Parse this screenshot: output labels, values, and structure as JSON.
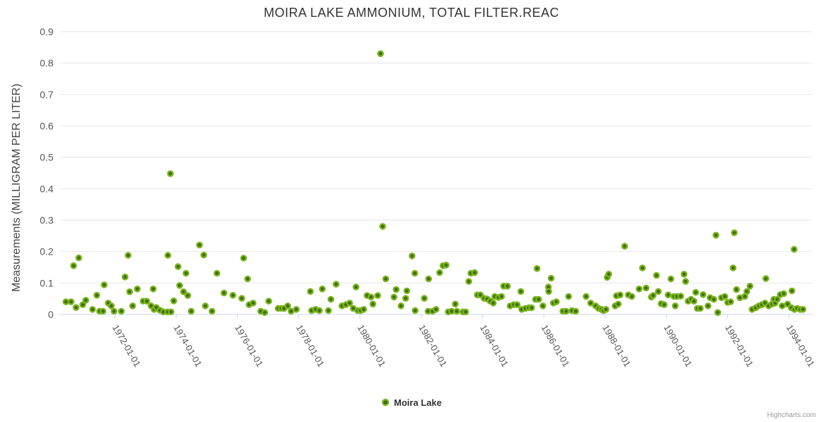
{
  "title": "MOIRA LAKE AMMONIUM, TOTAL FILTER.REAC",
  "legend": {
    "label": "Moira Lake"
  },
  "credits": "Highcharts.com",
  "colors": {
    "title": "#333333",
    "tick_label": "#555555",
    "grid": "#e6e6e6",
    "axis_line": "#ccd6eb",
    "marker_ring": "#7ab51f",
    "marker_core": "#3f6e0c",
    "credits": "#999999"
  },
  "chart_data": {
    "type": "scatter",
    "title": "MOIRA LAKE AMMONIUM, TOTAL FILTER.REAC",
    "xlabel": "",
    "ylabel": "Measurements (MILLIGRAM PER LITER)",
    "legend_position": "bottom-center",
    "grid": "horizontal",
    "xlim": [
      1970.2,
      1994.77
    ],
    "ylim": [
      0,
      0.9
    ],
    "xticks": [
      {
        "v": 1972,
        "label": "1972-01-01"
      },
      {
        "v": 1974,
        "label": "1974-01-01"
      },
      {
        "v": 1976,
        "label": "1976-01-01"
      },
      {
        "v": 1978,
        "label": "1978-01-01"
      },
      {
        "v": 1980,
        "label": "1980-01-01"
      },
      {
        "v": 1982,
        "label": "1982-01-01"
      },
      {
        "v": 1984,
        "label": "1984-01-01"
      },
      {
        "v": 1986,
        "label": "1986-01-01"
      },
      {
        "v": 1988,
        "label": "1988-01-01"
      },
      {
        "v": 1990,
        "label": "1990-01-01"
      },
      {
        "v": 1992,
        "label": "1992-01-01"
      },
      {
        "v": 1994,
        "label": "1994-01-01"
      }
    ],
    "yticks": [
      {
        "v": 0,
        "label": "0"
      },
      {
        "v": 0.1,
        "label": "0.1"
      },
      {
        "v": 0.2,
        "label": "0.2"
      },
      {
        "v": 0.3,
        "label": "0.3"
      },
      {
        "v": 0.4,
        "label": "0.4"
      },
      {
        "v": 0.5,
        "label": "0.5"
      },
      {
        "v": 0.6,
        "label": "0.6"
      },
      {
        "v": 0.7,
        "label": "0.7"
      },
      {
        "v": 0.8,
        "label": "0.8"
      },
      {
        "v": 0.9,
        "label": "0.9"
      }
    ],
    "series": [
      {
        "name": "Moira Lake",
        "color": "#7ab51f",
        "points": [
          [
            1970.4,
            0.04
          ],
          [
            1970.57,
            0.04
          ],
          [
            1970.65,
            0.155
          ],
          [
            1970.73,
            0.022
          ],
          [
            1970.82,
            0.18
          ],
          [
            1970.95,
            0.031
          ],
          [
            1971.05,
            0.045
          ],
          [
            1971.27,
            0.016
          ],
          [
            1971.41,
            0.061
          ],
          [
            1971.5,
            0.01
          ],
          [
            1971.61,
            0.01
          ],
          [
            1971.65,
            0.094
          ],
          [
            1971.78,
            0.036
          ],
          [
            1971.88,
            0.027
          ],
          [
            1971.97,
            0.01
          ],
          [
            1972.21,
            0.01
          ],
          [
            1972.33,
            0.119
          ],
          [
            1972.43,
            0.188
          ],
          [
            1972.48,
            0.072
          ],
          [
            1972.58,
            0.027
          ],
          [
            1972.73,
            0.081
          ],
          [
            1972.92,
            0.042
          ],
          [
            1973.04,
            0.042
          ],
          [
            1973.18,
            0.027
          ],
          [
            1973.25,
            0.081
          ],
          [
            1973.28,
            0.016
          ],
          [
            1973.35,
            0.022
          ],
          [
            1973.47,
            0.013
          ],
          [
            1973.58,
            0.008
          ],
          [
            1973.72,
            0.008
          ],
          [
            1973.73,
            0.188
          ],
          [
            1973.81,
            0.448
          ],
          [
            1973.83,
            0.008
          ],
          [
            1973.92,
            0.043
          ],
          [
            1974.06,
            0.152
          ],
          [
            1974.11,
            0.092
          ],
          [
            1974.24,
            0.072
          ],
          [
            1974.32,
            0.131
          ],
          [
            1974.38,
            0.06
          ],
          [
            1974.49,
            0.01
          ],
          [
            1974.76,
            0.221
          ],
          [
            1974.9,
            0.189
          ],
          [
            1974.95,
            0.027
          ],
          [
            1975.17,
            0.01
          ],
          [
            1975.33,
            0.131
          ],
          [
            1975.56,
            0.068
          ],
          [
            1975.85,
            0.061
          ],
          [
            1976.14,
            0.051
          ],
          [
            1976.2,
            0.179
          ],
          [
            1976.33,
            0.113
          ],
          [
            1976.38,
            0.031
          ],
          [
            1976.51,
            0.036
          ],
          [
            1976.76,
            0.01
          ],
          [
            1976.89,
            0.006
          ],
          [
            1977.02,
            0.042
          ],
          [
            1977.33,
            0.019
          ],
          [
            1977.43,
            0.019
          ],
          [
            1977.52,
            0.019
          ],
          [
            1977.64,
            0.027
          ],
          [
            1977.75,
            0.01
          ],
          [
            1977.92,
            0.016
          ],
          [
            1978.38,
            0.073
          ],
          [
            1978.42,
            0.012
          ],
          [
            1978.55,
            0.016
          ],
          [
            1978.67,
            0.012
          ],
          [
            1978.77,
            0.081
          ],
          [
            1978.97,
            0.012
          ],
          [
            1979.05,
            0.048
          ],
          [
            1979.22,
            0.096
          ],
          [
            1979.41,
            0.027
          ],
          [
            1979.54,
            0.031
          ],
          [
            1979.66,
            0.036
          ],
          [
            1979.78,
            0.019
          ],
          [
            1979.87,
            0.087
          ],
          [
            1979.93,
            0.012
          ],
          [
            1980.02,
            0.012
          ],
          [
            1980.12,
            0.016
          ],
          [
            1980.23,
            0.06
          ],
          [
            1980.36,
            0.055
          ],
          [
            1980.42,
            0.033
          ],
          [
            1980.58,
            0.06
          ],
          [
            1980.67,
            0.83
          ],
          [
            1980.74,
            0.28
          ],
          [
            1980.84,
            0.113
          ],
          [
            1981.11,
            0.055
          ],
          [
            1981.18,
            0.079
          ],
          [
            1981.34,
            0.027
          ],
          [
            1981.49,
            0.051
          ],
          [
            1981.53,
            0.075
          ],
          [
            1981.7,
            0.186
          ],
          [
            1981.79,
            0.131
          ],
          [
            1981.8,
            0.012
          ],
          [
            1982.1,
            0.051
          ],
          [
            1982.22,
            0.01
          ],
          [
            1982.24,
            0.113
          ],
          [
            1982.37,
            0.01
          ],
          [
            1982.48,
            0.016
          ],
          [
            1982.6,
            0.133
          ],
          [
            1982.71,
            0.155
          ],
          [
            1982.81,
            0.157
          ],
          [
            1982.88,
            0.008
          ],
          [
            1982.99,
            0.01
          ],
          [
            1983.11,
            0.033
          ],
          [
            1983.16,
            0.01
          ],
          [
            1983.36,
            0.008
          ],
          [
            1983.45,
            0.008
          ],
          [
            1983.55,
            0.105
          ],
          [
            1983.62,
            0.131
          ],
          [
            1983.74,
            0.133
          ],
          [
            1983.83,
            0.062
          ],
          [
            1983.93,
            0.062
          ],
          [
            1984.05,
            0.051
          ],
          [
            1984.15,
            0.049
          ],
          [
            1984.25,
            0.042
          ],
          [
            1984.35,
            0.036
          ],
          [
            1984.4,
            0.057
          ],
          [
            1984.52,
            0.054
          ],
          [
            1984.62,
            0.057
          ],
          [
            1984.69,
            0.09
          ],
          [
            1984.81,
            0.09
          ],
          [
            1984.9,
            0.027
          ],
          [
            1985.02,
            0.031
          ],
          [
            1985.13,
            0.031
          ],
          [
            1985.25,
            0.073
          ],
          [
            1985.28,
            0.016
          ],
          [
            1985.4,
            0.019
          ],
          [
            1985.51,
            0.021
          ],
          [
            1985.6,
            0.021
          ],
          [
            1985.73,
            0.048
          ],
          [
            1985.78,
            0.146
          ],
          [
            1985.83,
            0.048
          ],
          [
            1985.97,
            0.027
          ],
          [
            1986.15,
            0.087
          ],
          [
            1986.16,
            0.073
          ],
          [
            1986.24,
            0.115
          ],
          [
            1986.31,
            0.036
          ],
          [
            1986.41,
            0.04
          ],
          [
            1986.62,
            0.01
          ],
          [
            1986.73,
            0.01
          ],
          [
            1986.81,
            0.057
          ],
          [
            1986.92,
            0.012
          ],
          [
            1987.04,
            0.01
          ],
          [
            1987.38,
            0.057
          ],
          [
            1987.53,
            0.036
          ],
          [
            1987.69,
            0.027
          ],
          [
            1987.79,
            0.019
          ],
          [
            1987.88,
            0.016
          ],
          [
            1987.95,
            0.012
          ],
          [
            1988.03,
            0.016
          ],
          [
            1988.07,
            0.118
          ],
          [
            1988.12,
            0.128
          ],
          [
            1988.33,
            0.027
          ],
          [
            1988.37,
            0.059
          ],
          [
            1988.43,
            0.033
          ],
          [
            1988.49,
            0.062
          ],
          [
            1988.64,
            0.217
          ],
          [
            1988.76,
            0.062
          ],
          [
            1988.87,
            0.057
          ],
          [
            1989.11,
            0.081
          ],
          [
            1989.22,
            0.148
          ],
          [
            1989.34,
            0.084
          ],
          [
            1989.51,
            0.055
          ],
          [
            1989.57,
            0.06
          ],
          [
            1989.68,
            0.124
          ],
          [
            1989.74,
            0.073
          ],
          [
            1989.83,
            0.034
          ],
          [
            1989.93,
            0.031
          ],
          [
            1990.06,
            0.062
          ],
          [
            1990.15,
            0.113
          ],
          [
            1990.25,
            0.057
          ],
          [
            1990.29,
            0.027
          ],
          [
            1990.35,
            0.057
          ],
          [
            1990.47,
            0.058
          ],
          [
            1990.58,
            0.128
          ],
          [
            1990.63,
            0.105
          ],
          [
            1990.71,
            0.042
          ],
          [
            1990.81,
            0.048
          ],
          [
            1990.9,
            0.042
          ],
          [
            1990.96,
            0.07
          ],
          [
            1991.01,
            0.019
          ],
          [
            1991.11,
            0.019
          ],
          [
            1991.2,
            0.063
          ],
          [
            1991.36,
            0.027
          ],
          [
            1991.43,
            0.053
          ],
          [
            1991.55,
            0.048
          ],
          [
            1991.62,
            0.252
          ],
          [
            1991.68,
            0.006
          ],
          [
            1991.8,
            0.053
          ],
          [
            1991.91,
            0.057
          ],
          [
            1992.0,
            0.038
          ],
          [
            1992.1,
            0.04
          ],
          [
            1992.18,
            0.148
          ],
          [
            1992.22,
            0.26
          ],
          [
            1992.29,
            0.079
          ],
          [
            1992.4,
            0.053
          ],
          [
            1992.56,
            0.057
          ],
          [
            1992.63,
            0.073
          ],
          [
            1992.73,
            0.09
          ],
          [
            1992.8,
            0.016
          ],
          [
            1992.92,
            0.021
          ],
          [
            1993.02,
            0.027
          ],
          [
            1993.12,
            0.031
          ],
          [
            1993.22,
            0.036
          ],
          [
            1993.25,
            0.114
          ],
          [
            1993.34,
            0.027
          ],
          [
            1993.45,
            0.033
          ],
          [
            1993.51,
            0.048
          ],
          [
            1993.55,
            0.036
          ],
          [
            1993.62,
            0.048
          ],
          [
            1993.72,
            0.063
          ],
          [
            1993.78,
            0.027
          ],
          [
            1993.83,
            0.066
          ],
          [
            1993.96,
            0.033
          ],
          [
            1994.08,
            0.021
          ],
          [
            1994.1,
            0.075
          ],
          [
            1994.17,
            0.207
          ],
          [
            1994.18,
            0.016
          ],
          [
            1994.27,
            0.019
          ],
          [
            1994.37,
            0.016
          ],
          [
            1994.46,
            0.016
          ]
        ]
      }
    ]
  }
}
